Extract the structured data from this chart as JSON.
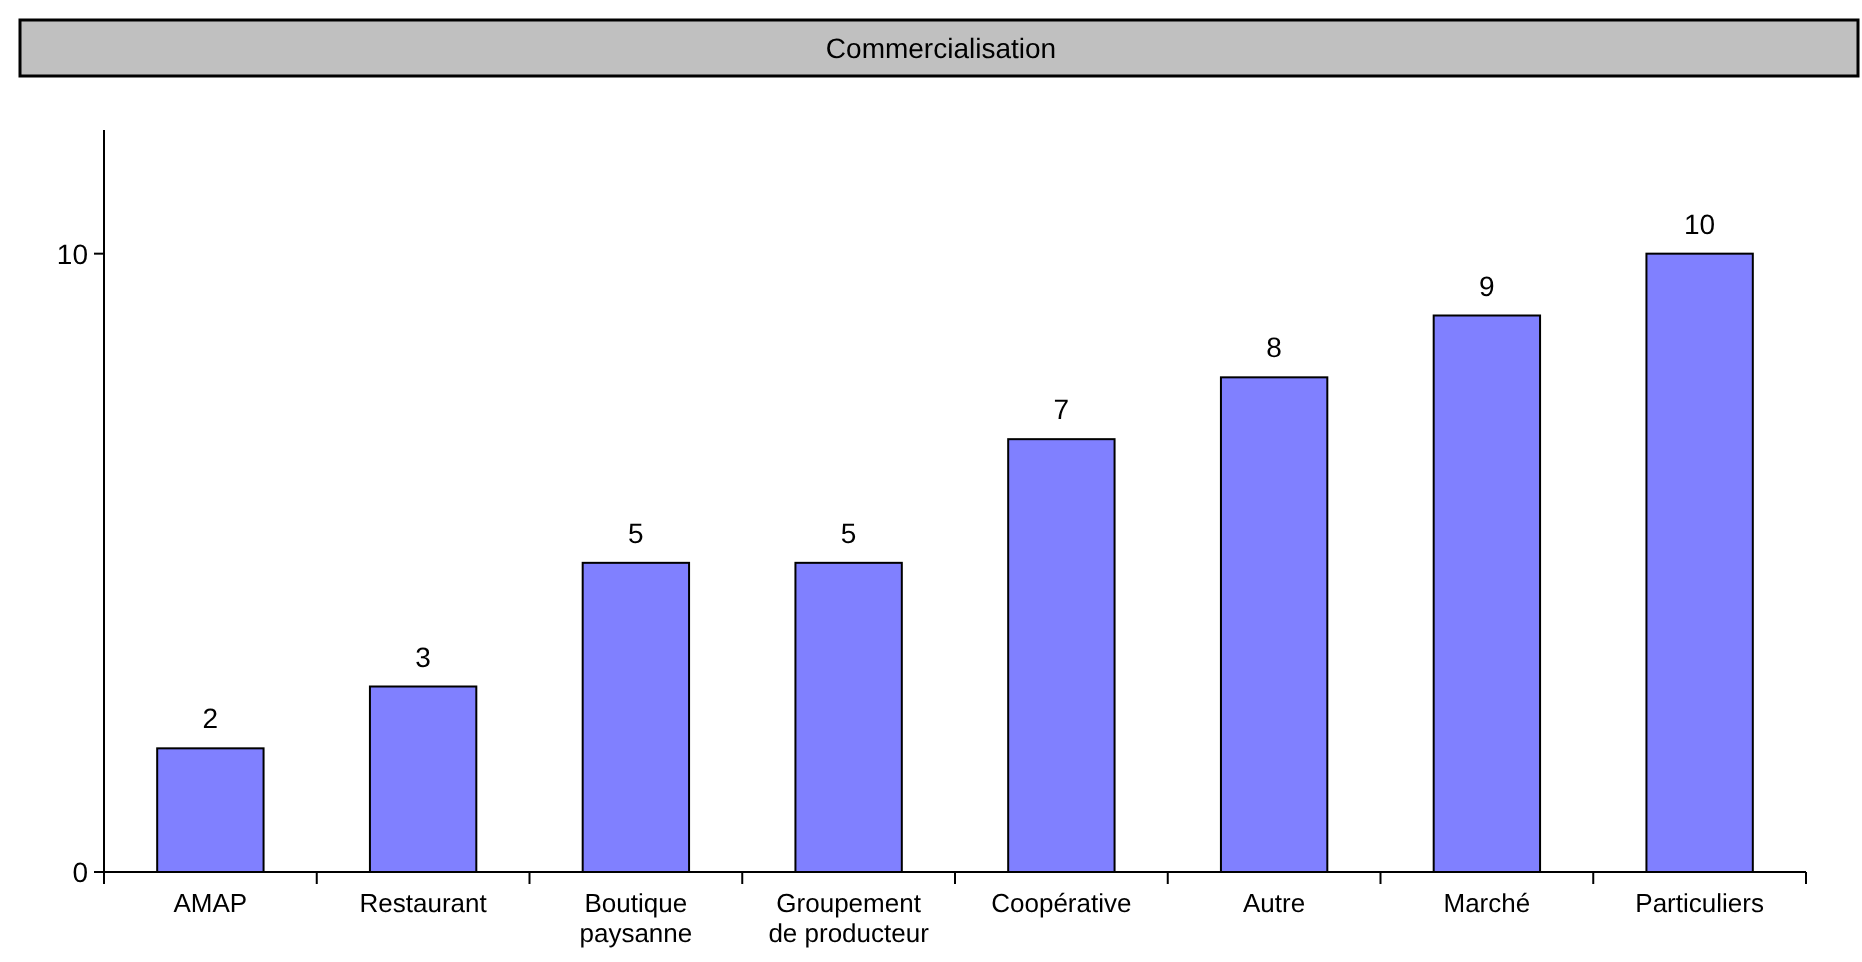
{
  "chart_data": {
    "type": "bar",
    "title": "Commercialisation",
    "categories": [
      "AMAP",
      "Restaurant",
      "Boutique\npaysanne",
      "Groupement\nde producteur",
      "Coopérative",
      "Autre",
      "Marché",
      "Particuliers"
    ],
    "values": [
      2,
      3,
      5,
      5,
      7,
      8,
      9,
      10
    ],
    "color": "#8080ff",
    "ylim": [
      0,
      12
    ],
    "yticks": [
      0,
      10
    ],
    "data_labels": true,
    "grid": false
  }
}
